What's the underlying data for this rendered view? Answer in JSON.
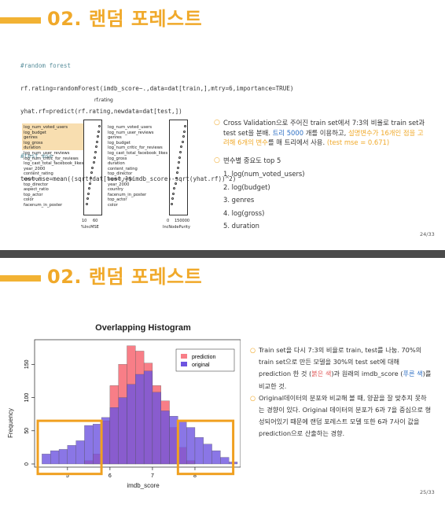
{
  "slide1": {
    "title": "02. 랜덤 포레스트",
    "code_lines": [
      "#random forest",
      "rf.rating=randomForest(imdb_score~.,data=dat[train,],mtry=6,importance=TRUE)",
      "yhat.rf=predict(rf.rating,newdata=dat[test,])",
      "",
      "#test mse",
      "test.mse=mean((sqrt(dat[test,]$imdb_score)-sqrt(yhat.rf))^2)"
    ],
    "plot_title": "rf.rating",
    "left_vars": [
      "log_num_voted_users",
      "log_budget",
      "genres",
      "log_gross",
      "duration",
      "log_num_user_reviews",
      "log_num_critic_for_reviews",
      "log_cast_total_facebook_likes",
      "year_2000",
      "content_rating",
      "country",
      "top_director",
      "aspect_ratio",
      "top_actor",
      "color",
      "facenum_in_poster"
    ],
    "right_vars": [
      "log_num_voted_users",
      "log_num_user_reviews",
      "genres",
      "log_budget",
      "log_num_critic_for_reviews",
      "log_cast_total_facebook_likes",
      "log_gross",
      "duration",
      "content_rating",
      "top_director",
      "aspect_ratio",
      "year_2000",
      "country",
      "facenum_in_poster",
      "top_actor",
      "color"
    ],
    "left_axis_ticks": [
      "10",
      "60"
    ],
    "left_axis_label": "%IncMSE",
    "right_axis_ticks": [
      "0",
      "150000"
    ],
    "right_axis_label": "IncNodePurity",
    "bullet1_parts": [
      "Cross Validation으로 주어진 train set에서 7:3의 비율로 train set과 test set을 분배. ",
      "트리 5000 ",
      "개를 이용하고, ",
      "설명변수가 16개인 점을 고려해 ",
      "6개의 변수",
      "를 매 트리에서 사용. ",
      "(test mse = 0.671)"
    ],
    "bullet2": "변수별 중요도 top 5",
    "top5": [
      "1. log(num_voted_users)",
      "2. log(budget)",
      "3. genres",
      "4. log(gross)",
      "5. duration"
    ],
    "page": "24/33"
  },
  "slide2": {
    "title": "02. 랜덤 포레스트",
    "bullet1": "Train set을 다시 7:3의 비율로 train, test를 나눔. 70%의 train set으로 만든 모델을 30%의 test set에 대해 prediction 한 것 (",
    "bullet1_red": "붉은 색",
    "bullet1_mid": ")과 원래의 imdb_score (",
    "bullet1_blue": "푸른 색",
    "bullet1_end": ")를 비교한 것.",
    "bullet2": "Original데이터의 분포와 비교해 볼 때, 양끝을 잘 맞추지 못하는 경향이 있다. Original 데이터의 분포가 6과 7을 중심으로 형성되어있기 때문에 랜덤 포레스트 모델 또한 6과 7사이 값을 prediction으로 산출하는 경향.",
    "page": "25/33"
  },
  "chart_data": {
    "type": "bar",
    "title": "Overlapping Histogram",
    "xlabel": "imdb_score",
    "ylabel": "Frequency",
    "x_ticks": [
      5,
      6,
      7,
      8
    ],
    "y_ticks": [
      0,
      50,
      100,
      150
    ],
    "ylim": [
      0,
      180
    ],
    "xlim": [
      4.3,
      9.0
    ],
    "bin_width": 0.2,
    "bin_starts": [
      4.4,
      4.6,
      4.8,
      5.0,
      5.2,
      5.4,
      5.6,
      5.8,
      6.0,
      6.2,
      6.4,
      6.6,
      6.8,
      7.0,
      7.2,
      7.4,
      7.6,
      7.8,
      8.0,
      8.2,
      8.4,
      8.6,
      8.8
    ],
    "series": [
      {
        "name": "prediction",
        "color": "#f87e87",
        "values": [
          0,
          0,
          0,
          0,
          0,
          5,
          15,
          65,
          118,
          150,
          178,
          170,
          152,
          118,
          95,
          55,
          25,
          5,
          0,
          0,
          0,
          0,
          0
        ]
      },
      {
        "name": "original",
        "color": "#6d54e0",
        "values": [
          15,
          20,
          22,
          28,
          35,
          58,
          60,
          70,
          85,
          100,
          120,
          135,
          140,
          108,
          80,
          72,
          65,
          55,
          40,
          30,
          20,
          10,
          3
        ]
      }
    ],
    "legend": "top-right",
    "highlight_boxes": [
      [
        4.3,
        5.8
      ],
      [
        7.6,
        8.9
      ]
    ]
  }
}
